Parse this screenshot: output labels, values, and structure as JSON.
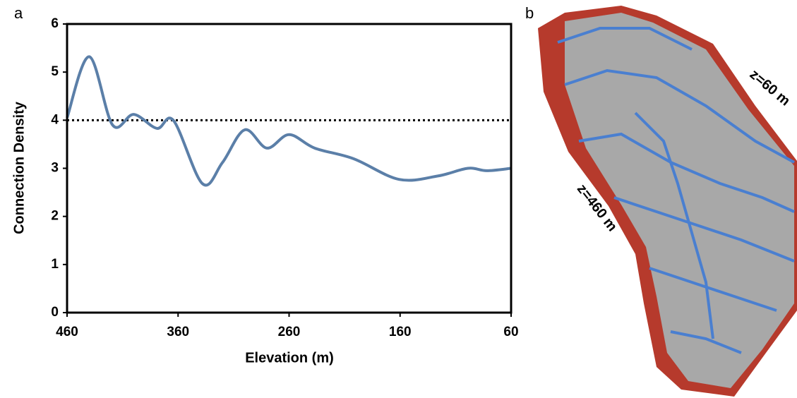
{
  "chart_data": {
    "type": "line",
    "xlabel": "Elevation (m)",
    "ylabel": "Connection Density",
    "x": [
      460,
      440,
      419,
      400,
      379,
      364,
      338,
      320,
      300,
      280,
      260,
      237,
      202,
      161,
      126,
      99,
      82,
      60
    ],
    "series": [
      {
        "color": "#5b7fa8",
        "values": [
          4.05,
          5.32,
          3.9,
          4.12,
          3.83,
          3.99,
          2.68,
          3.12,
          3.8,
          3.42,
          3.7,
          3.42,
          3.2,
          2.77,
          2.84,
          3.0,
          2.95,
          3.0
        ]
      }
    ],
    "reference_line": 4,
    "xlim": [
      460,
      60
    ],
    "xticks": [
      460,
      360,
      260,
      160,
      60
    ],
    "ylim": [
      0,
      6
    ],
    "yticks": [
      0,
      1,
      2,
      3,
      4,
      5,
      6
    ]
  },
  "panel_labels": [
    "a",
    "b"
  ],
  "map": {
    "labels": [
      "z=60 m",
      "z=460 m"
    ]
  }
}
